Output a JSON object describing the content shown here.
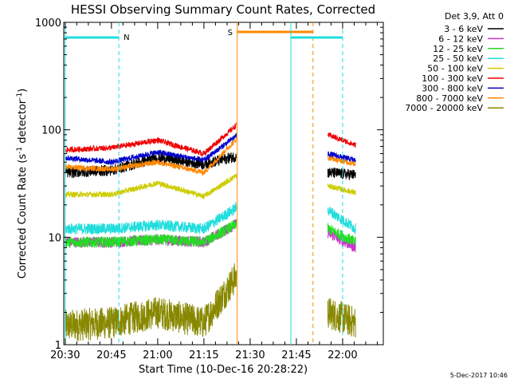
{
  "chart_data": {
    "type": "line",
    "title": "HESSI Observing Summary Count Rates, Corrected",
    "xlabel": "Start Time (10-Dec-16 20:28:22)",
    "ylabel_main": "Corrected Count Rate (s",
    "ylabel_sup1": "-1",
    "ylabel_mid": " detector",
    "ylabel_sup2": "-1",
    "ylabel_end": ")",
    "y_scale": "log",
    "ylim": [
      1,
      1000
    ],
    "xlim_minutes": [
      20.5,
      22.2
    ],
    "x_ticks": [
      {
        "label": "20:30",
        "hour": 20.5
      },
      {
        "label": "20:45",
        "hour": 20.75
      },
      {
        "label": "21:00",
        "hour": 21.0
      },
      {
        "label": "21:15",
        "hour": 21.25
      },
      {
        "label": "21:30",
        "hour": 21.5
      },
      {
        "label": "21:45",
        "hour": 21.75
      },
      {
        "label": "22:00",
        "hour": 22.0
      }
    ],
    "y_ticks": [
      {
        "label": "1000",
        "value": 1000
      },
      {
        "label": "100",
        "value": 100
      },
      {
        "label": "10",
        "value": 10
      },
      {
        "label": "1",
        "value": 1
      }
    ],
    "legend_title": "Det 3,9, Att 0",
    "legend_position": "right",
    "series": [
      {
        "name": "3 - 6 keV",
        "color": "#000000",
        "points": [
          [
            20.5,
            40
          ],
          [
            20.75,
            42
          ],
          [
            21.0,
            55
          ],
          [
            21.25,
            48
          ],
          [
            21.45,
            58
          ],
          [
            21.92,
            40
          ],
          [
            22.07,
            38
          ]
        ]
      },
      {
        "name": "6 - 12 keV",
        "color": "#cc33cc",
        "points": [
          [
            20.5,
            9
          ],
          [
            20.75,
            9
          ],
          [
            21.0,
            9.5
          ],
          [
            21.25,
            9
          ],
          [
            21.45,
            14
          ],
          [
            21.92,
            11
          ],
          [
            22.07,
            8
          ]
        ]
      },
      {
        "name": "12 - 25 keV",
        "color": "#22dd22",
        "points": [
          [
            20.5,
            9
          ],
          [
            20.75,
            9
          ],
          [
            21.0,
            9.5
          ],
          [
            21.25,
            9
          ],
          [
            21.45,
            14
          ],
          [
            21.92,
            12
          ],
          [
            22.07,
            9
          ]
        ]
      },
      {
        "name": "25 - 50 keV",
        "color": "#22dddd",
        "points": [
          [
            20.5,
            12
          ],
          [
            20.75,
            12
          ],
          [
            21.0,
            13
          ],
          [
            21.25,
            12
          ],
          [
            21.45,
            20
          ],
          [
            21.92,
            18
          ],
          [
            22.07,
            12
          ]
        ]
      },
      {
        "name": "50 - 100 keV",
        "color": "#cccc00",
        "points": [
          [
            20.5,
            25
          ],
          [
            20.75,
            25
          ],
          [
            21.0,
            32
          ],
          [
            21.25,
            24
          ],
          [
            21.45,
            40
          ],
          [
            21.92,
            30
          ],
          [
            22.07,
            26
          ]
        ]
      },
      {
        "name": "100 - 300 keV",
        "color": "#ee0000",
        "points": [
          [
            20.5,
            65
          ],
          [
            20.75,
            68
          ],
          [
            21.0,
            80
          ],
          [
            21.25,
            60
          ],
          [
            21.45,
            120
          ],
          [
            21.92,
            90
          ],
          [
            22.07,
            72
          ]
        ]
      },
      {
        "name": "300 - 800 keV",
        "color": "#0000cc",
        "points": [
          [
            20.5,
            55
          ],
          [
            20.75,
            50
          ],
          [
            21.0,
            62
          ],
          [
            21.25,
            52
          ],
          [
            21.45,
            95
          ],
          [
            21.92,
            60
          ],
          [
            22.07,
            52
          ]
        ]
      },
      {
        "name": "800 - 7000 keV",
        "color": "#ff8800",
        "points": [
          [
            20.5,
            45
          ],
          [
            20.75,
            43
          ],
          [
            21.0,
            50
          ],
          [
            21.25,
            40
          ],
          [
            21.45,
            90
          ],
          [
            21.92,
            55
          ],
          [
            22.07,
            48
          ]
        ]
      },
      {
        "name": "7000 - 20000 keV",
        "color": "#888800",
        "points": [
          [
            20.5,
            1.5
          ],
          [
            20.75,
            1.6
          ],
          [
            21.0,
            2
          ],
          [
            21.25,
            1.6
          ],
          [
            21.45,
            5
          ],
          [
            21.92,
            2
          ],
          [
            22.07,
            1.6
          ]
        ]
      }
    ],
    "annotations": [
      {
        "label": "N",
        "color": "#22dddd"
      },
      {
        "label": "S",
        "color": "#ff8800"
      }
    ],
    "footer_date": "5-Dec-2017 10:46"
  }
}
